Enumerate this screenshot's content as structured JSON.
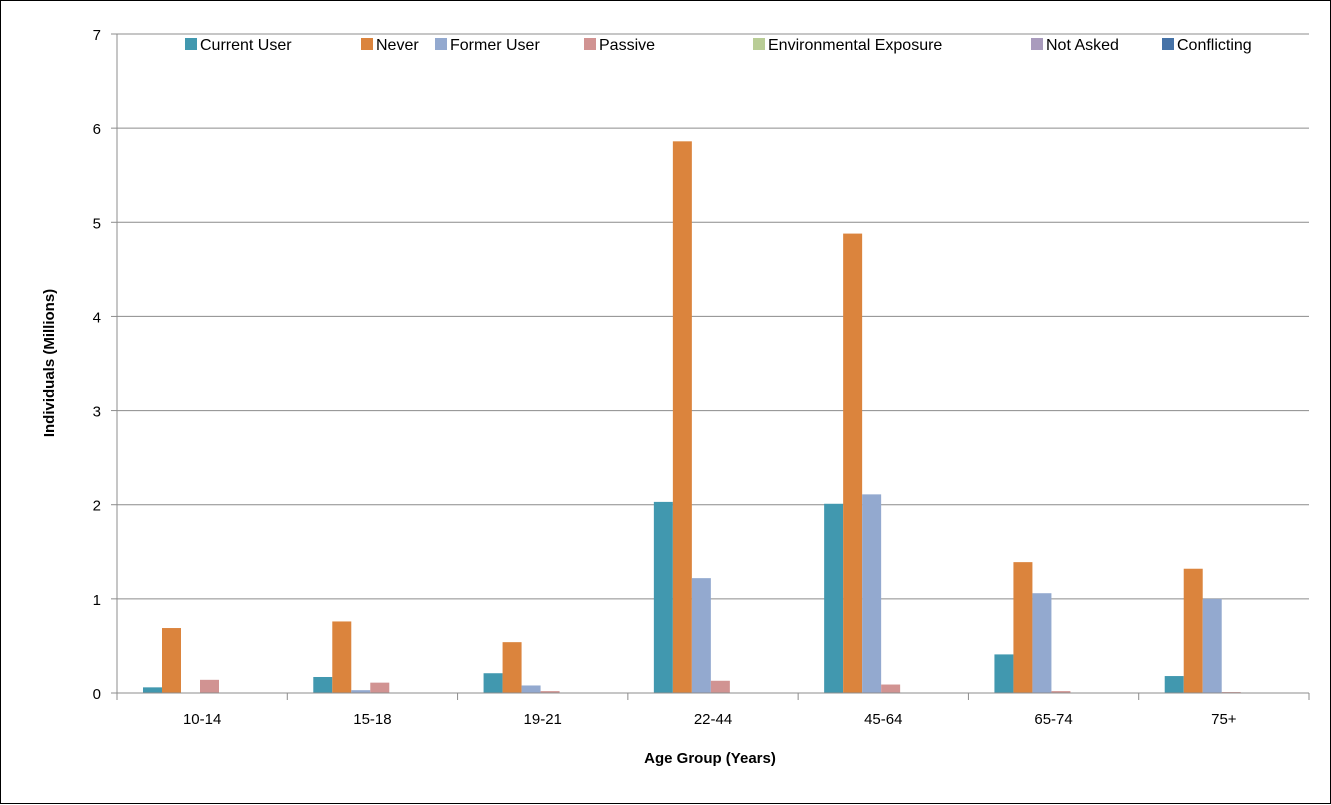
{
  "chart_data": {
    "type": "bar",
    "title": "",
    "xlabel": "Age Group (Years)",
    "ylabel": "Individuals (Millions)",
    "ylim": [
      0,
      7
    ],
    "yticks": [
      0,
      1,
      2,
      3,
      4,
      5,
      6,
      7
    ],
    "grid": true,
    "legend_position": "top",
    "categories": [
      "10-14",
      "15-18",
      "19-21",
      "22-44",
      "45-64",
      "65-74",
      "75+"
    ],
    "series": [
      {
        "name": "Current User",
        "color": "#4198AF",
        "values": [
          0.06,
          0.17,
          0.21,
          2.03,
          2.01,
          0.41,
          0.18
        ]
      },
      {
        "name": "Never",
        "color": "#DB843D",
        "values": [
          0.69,
          0.76,
          0.54,
          5.86,
          4.88,
          1.39,
          1.32
        ]
      },
      {
        "name": "Former User",
        "color": "#93A9CF",
        "values": [
          0.0,
          0.03,
          0.08,
          1.22,
          2.11,
          1.06,
          1.0
        ]
      },
      {
        "name": "Passive",
        "color": "#D19392",
        "values": [
          0.14,
          0.11,
          0.02,
          0.13,
          0.09,
          0.02,
          0.01
        ]
      },
      {
        "name": "Environmental Exposure",
        "color": "#B9CD96",
        "values": [
          0.0,
          0.0,
          0.0,
          0.005,
          0.0,
          0.0,
          0.0
        ]
      },
      {
        "name": "Not Asked",
        "color": "#A99BBD",
        "values": [
          0.0,
          0.0,
          0.0,
          0.0,
          0.0,
          0.0,
          0.0
        ]
      },
      {
        "name": "Conflicting",
        "color": "#4572A7",
        "values": [
          0.005,
          0.005,
          0.005,
          0.005,
          0.005,
          0.005,
          0.005
        ]
      }
    ]
  }
}
